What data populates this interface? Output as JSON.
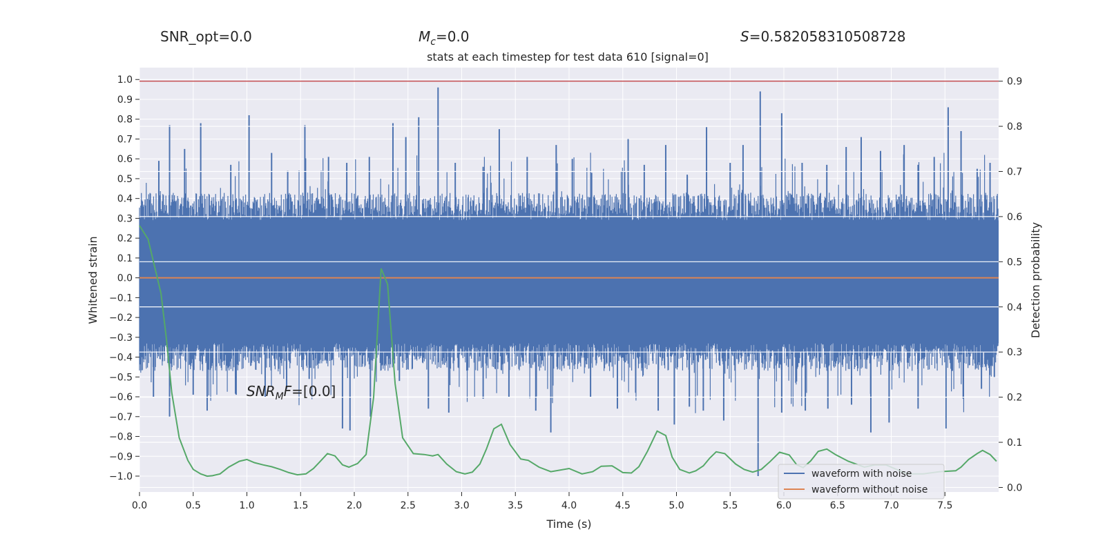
{
  "header": {
    "snr_opt_label": "SNR_opt=0.0",
    "mc_symbol": "M",
    "mc_sub": "c",
    "mc_value": "=0.0",
    "s_symbol": "S",
    "s_value": "=0.582058310508728",
    "snr_mf_symbol": "SNR",
    "snr_mf_sub": "M",
    "snr_mf_sym2": "F",
    "snr_mf_value": "=[0.0]"
  },
  "chart_data": {
    "type": "line",
    "title": "stats at each timestep for test data 610 [signal=0]",
    "xlabel": "Time (s)",
    "ylabel_left": "Whitened strain",
    "ylabel_right": "Detection probability",
    "xlim": [
      0.0,
      8.0
    ],
    "ylim_left": [
      -1.08,
      1.06
    ],
    "ylim_right": [
      -0.01,
      0.93
    ],
    "x_ticks": [
      0.0,
      0.5,
      1.0,
      1.5,
      2.0,
      2.5,
      3.0,
      3.5,
      4.0,
      4.5,
      5.0,
      5.5,
      6.0,
      6.5,
      7.0,
      7.5
    ],
    "x_tick_labels": [
      "0.0",
      "0.5",
      "1.0",
      "1.5",
      "2.0",
      "2.5",
      "3.0",
      "3.5",
      "4.0",
      "4.5",
      "5.0",
      "5.5",
      "6.0",
      "6.5",
      "7.0",
      "7.5"
    ],
    "y_left_ticks": [
      1.0,
      0.9,
      0.8,
      0.7,
      0.6,
      0.5,
      0.4,
      0.3,
      0.2,
      0.1,
      0.0,
      -0.1,
      -0.2,
      -0.3,
      -0.4,
      -0.5,
      -0.6,
      -0.7,
      -0.8,
      -0.9,
      -1.0
    ],
    "y_left_tick_labels": [
      "1.0",
      "0.9",
      "0.8",
      "0.7",
      "0.6",
      "0.5",
      "0.4",
      "0.3",
      "0.2",
      "0.1",
      "0.0",
      "−0.1",
      "−0.2",
      "−0.3",
      "−0.4",
      "−0.5",
      "−0.6",
      "−0.7",
      "−0.8",
      "−0.9",
      "−1.0"
    ],
    "y_right_ticks": [
      0.9,
      0.8,
      0.7,
      0.6,
      0.5,
      0.4,
      0.3,
      0.2,
      0.1,
      0.0
    ],
    "y_right_tick_labels": [
      "0.9",
      "0.8",
      "0.7",
      "0.6",
      "0.5",
      "0.4",
      "0.3",
      "0.2",
      "0.1",
      "0.0"
    ],
    "threshold": 0.9,
    "series": [
      {
        "name": "waveform with noise",
        "color": "#4c72b0",
        "noise_band_peak": 0.29,
        "noise_band_trough": -0.33,
        "spikes_up": [
          [
            0.18,
            0.59
          ],
          [
            0.28,
            0.77
          ],
          [
            0.42,
            0.65
          ],
          [
            0.57,
            0.78
          ],
          [
            0.85,
            0.57
          ],
          [
            1.02,
            0.82
          ],
          [
            1.23,
            0.63
          ],
          [
            1.38,
            0.54
          ],
          [
            1.54,
            0.77
          ],
          [
            1.76,
            0.61
          ],
          [
            1.93,
            0.58
          ],
          [
            2.14,
            0.61
          ],
          [
            2.36,
            0.78
          ],
          [
            2.48,
            0.71
          ],
          [
            2.6,
            0.81
          ],
          [
            2.78,
            0.96
          ],
          [
            2.94,
            0.58
          ],
          [
            3.2,
            0.56
          ],
          [
            3.35,
            0.75
          ],
          [
            3.61,
            0.61
          ],
          [
            3.88,
            0.67
          ],
          [
            4.03,
            0.6
          ],
          [
            4.21,
            0.53
          ],
          [
            4.55,
            0.7
          ],
          [
            4.7,
            0.57
          ],
          [
            4.9,
            0.67
          ],
          [
            5.1,
            0.52
          ],
          [
            5.28,
            0.76
          ],
          [
            5.5,
            0.58
          ],
          [
            5.62,
            0.67
          ],
          [
            5.78,
            0.94
          ],
          [
            5.98,
            0.83
          ],
          [
            6.17,
            0.58
          ],
          [
            6.4,
            0.57
          ],
          [
            6.58,
            0.66
          ],
          [
            6.72,
            0.71
          ],
          [
            6.9,
            0.64
          ],
          [
            7.12,
            0.67
          ],
          [
            7.25,
            0.57
          ],
          [
            7.4,
            0.61
          ],
          [
            7.53,
            0.86
          ],
          [
            7.65,
            0.74
          ],
          [
            7.8,
            0.55
          ],
          [
            7.92,
            0.58
          ]
        ],
        "spikes_down": [
          [
            0.13,
            -0.6
          ],
          [
            0.28,
            -0.7
          ],
          [
            0.5,
            -0.59
          ],
          [
            0.63,
            -0.67
          ],
          [
            0.9,
            -0.59
          ],
          [
            1.17,
            -0.6
          ],
          [
            1.37,
            -0.56
          ],
          [
            1.58,
            -0.51
          ],
          [
            1.89,
            -0.76
          ],
          [
            1.96,
            -0.77
          ],
          [
            2.15,
            -0.7
          ],
          [
            2.42,
            -0.52
          ],
          [
            2.69,
            -0.66
          ],
          [
            2.88,
            -0.68
          ],
          [
            3.2,
            -0.61
          ],
          [
            3.44,
            -0.6
          ],
          [
            3.69,
            -0.67
          ],
          [
            3.83,
            -0.78
          ],
          [
            4.2,
            -0.6
          ],
          [
            4.45,
            -0.66
          ],
          [
            4.62,
            -0.58
          ],
          [
            4.83,
            -0.67
          ],
          [
            4.98,
            -0.74
          ],
          [
            5.12,
            -0.65
          ],
          [
            5.25,
            -0.67
          ],
          [
            5.44,
            -0.72
          ],
          [
            5.76,
            -1.0
          ],
          [
            5.98,
            -0.68
          ],
          [
            6.2,
            -0.67
          ],
          [
            6.41,
            -0.66
          ],
          [
            6.63,
            -0.64
          ],
          [
            6.81,
            -0.78
          ],
          [
            6.98,
            -0.73
          ],
          [
            7.25,
            -0.66
          ],
          [
            7.51,
            -0.76
          ],
          [
            7.67,
            -0.61
          ],
          [
            7.84,
            -0.56
          ],
          [
            7.96,
            -0.5
          ]
        ]
      },
      {
        "name": "waveform without noise",
        "color": "#dd8452",
        "x": [
          0.0,
          8.0
        ],
        "y": [
          0.0,
          0.0
        ]
      },
      {
        "name": "detection probability",
        "color": "#55a868",
        "axis": "right",
        "x": [
          0.0,
          0.08,
          0.13,
          0.2,
          0.25,
          0.3,
          0.37,
          0.45,
          0.5,
          0.57,
          0.63,
          0.68,
          0.75,
          0.83,
          0.93,
          1.0,
          1.07,
          1.15,
          1.23,
          1.31,
          1.39,
          1.47,
          1.55,
          1.62,
          1.68,
          1.75,
          1.82,
          1.89,
          1.95,
          2.03,
          2.11,
          2.18,
          2.25,
          2.31,
          2.38,
          2.45,
          2.55,
          2.65,
          2.73,
          2.78,
          2.86,
          2.95,
          3.03,
          3.1,
          3.17,
          3.23,
          3.3,
          3.37,
          3.45,
          3.55,
          3.62,
          3.72,
          3.83,
          4.0,
          4.12,
          4.22,
          4.3,
          4.4,
          4.5,
          4.58,
          4.65,
          4.73,
          4.82,
          4.9,
          4.96,
          5.03,
          5.12,
          5.18,
          5.25,
          5.31,
          5.37,
          5.45,
          5.55,
          5.63,
          5.71,
          5.79,
          5.87,
          5.96,
          6.05,
          6.12,
          6.18,
          6.25,
          6.32,
          6.4,
          6.48,
          6.6,
          6.75,
          6.85,
          6.95,
          7.05,
          7.15,
          7.3,
          7.45,
          7.6,
          7.65,
          7.72,
          7.8,
          7.85,
          7.92,
          7.98
        ],
        "y": [
          0.58,
          0.55,
          0.5,
          0.43,
          0.33,
          0.21,
          0.11,
          0.06,
          0.04,
          0.03,
          0.025,
          0.026,
          0.03,
          0.045,
          0.058,
          0.062,
          0.055,
          0.05,
          0.046,
          0.04,
          0.033,
          0.028,
          0.03,
          0.042,
          0.057,
          0.075,
          0.07,
          0.05,
          0.045,
          0.053,
          0.073,
          0.2,
          0.485,
          0.45,
          0.23,
          0.11,
          0.075,
          0.073,
          0.07,
          0.073,
          0.052,
          0.035,
          0.03,
          0.034,
          0.052,
          0.085,
          0.13,
          0.14,
          0.095,
          0.063,
          0.06,
          0.045,
          0.035,
          0.042,
          0.03,
          0.035,
          0.047,
          0.048,
          0.033,
          0.032,
          0.046,
          0.08,
          0.125,
          0.115,
          0.067,
          0.04,
          0.032,
          0.037,
          0.048,
          0.065,
          0.079,
          0.075,
          0.052,
          0.04,
          0.034,
          0.04,
          0.057,
          0.078,
          0.072,
          0.05,
          0.044,
          0.059,
          0.08,
          0.085,
          0.073,
          0.058,
          0.045,
          0.05,
          0.05,
          0.04,
          0.03,
          0.03,
          0.035,
          0.037,
          0.045,
          0.062,
          0.075,
          0.082,
          0.073,
          0.058
        ]
      }
    ],
    "legend": {
      "position": "lower-right",
      "entries": [
        "waveform with noise",
        "waveform without noise"
      ]
    },
    "colors": {
      "background": "#eaeaf2",
      "grid": "#ffffff",
      "threshold_line": "#c44e52"
    }
  }
}
